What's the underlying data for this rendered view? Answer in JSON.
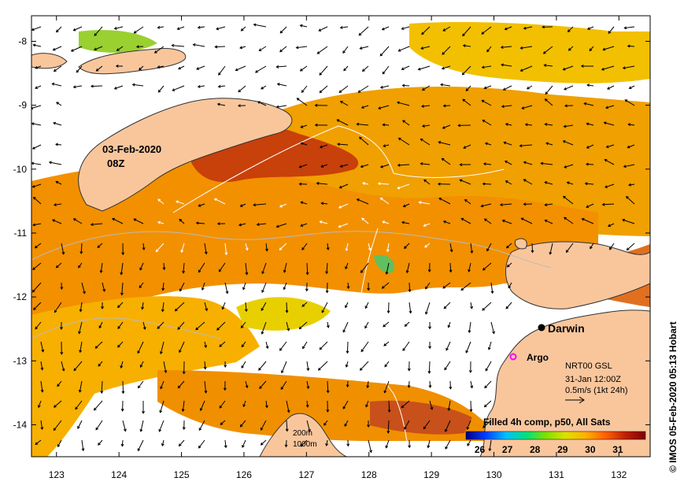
{
  "map": {
    "lat_ticks": [
      "-8",
      "-9",
      "-10",
      "-11",
      "-12",
      "-13",
      "-14"
    ],
    "lon_ticks": [
      "123",
      "124",
      "125",
      "126",
      "127",
      "128",
      "129",
      "130",
      "131",
      "132"
    ],
    "lat_range": [
      -7.6,
      -14.5
    ],
    "lon_range": [
      122.6,
      132.5
    ],
    "colors": {
      "land": "#f9c69c",
      "coast": "#333333",
      "no_data": "#ffffff",
      "isobath_200": "#bbbbbb",
      "isobath_1000": "#ffffff",
      "argo_marker": "#ff00ff"
    }
  },
  "annotations": {
    "date_line1": "03-Feb-2020",
    "date_line2": "08Z",
    "darwin": "Darwin",
    "argo": "Argo",
    "product": "NRT00 GSL",
    "valid_time": "31-Jan 12:00Z",
    "scale_arrow": "0.5m/s (1kt 24h)",
    "composite": "Filled 4h comp, p50, All Sats",
    "isobath_200": "200m",
    "isobath_1000": "1000m",
    "credit": "© IMOS 05-Feb-2020 05:13 Hobart"
  },
  "colorbar": {
    "ticks": [
      "26",
      "27",
      "28",
      "29",
      "30",
      "31"
    ],
    "range": [
      25.5,
      32
    ],
    "stops": [
      "#000080",
      "#0040ff",
      "#00c0ff",
      "#00e080",
      "#80e000",
      "#e0e000",
      "#ffb000",
      "#ff6000",
      "#c02000",
      "#800000"
    ]
  }
}
